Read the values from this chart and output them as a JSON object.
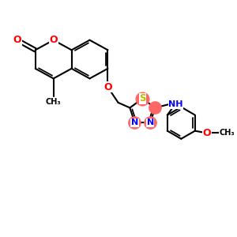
{
  "bg_color": "#ffffff",
  "bond_color": "#000000",
  "bond_width": 1.5,
  "atom_colors": {
    "C": "#000000",
    "N": "#0000ff",
    "O": "#ff0000",
    "S": "#cccc00",
    "H": "#000000"
  },
  "highlight_color": "#ff6666",
  "figsize": [
    3.0,
    3.0
  ],
  "dpi": 100,
  "xlim": [
    0,
    10
  ],
  "ylim": [
    0,
    10
  ]
}
